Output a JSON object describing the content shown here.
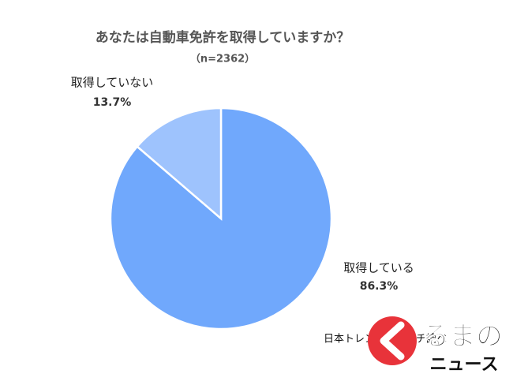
{
  "chart_data": {
    "type": "pie",
    "title": "あなたは自動車免許を取得していますか？",
    "subtitle": "（n=2362）",
    "categories": [
      "取得している",
      "取得していない"
    ],
    "values": [
      86.3,
      13.7
    ],
    "value_labels": [
      "86.3%",
      "13.7%"
    ],
    "colors": [
      "#70a8fc",
      "#9ec3fd"
    ],
    "source": "日本トレンドリサーチ調べ"
  },
  "logo": {
    "text1": "るまの",
    "text2": "ニュース"
  }
}
